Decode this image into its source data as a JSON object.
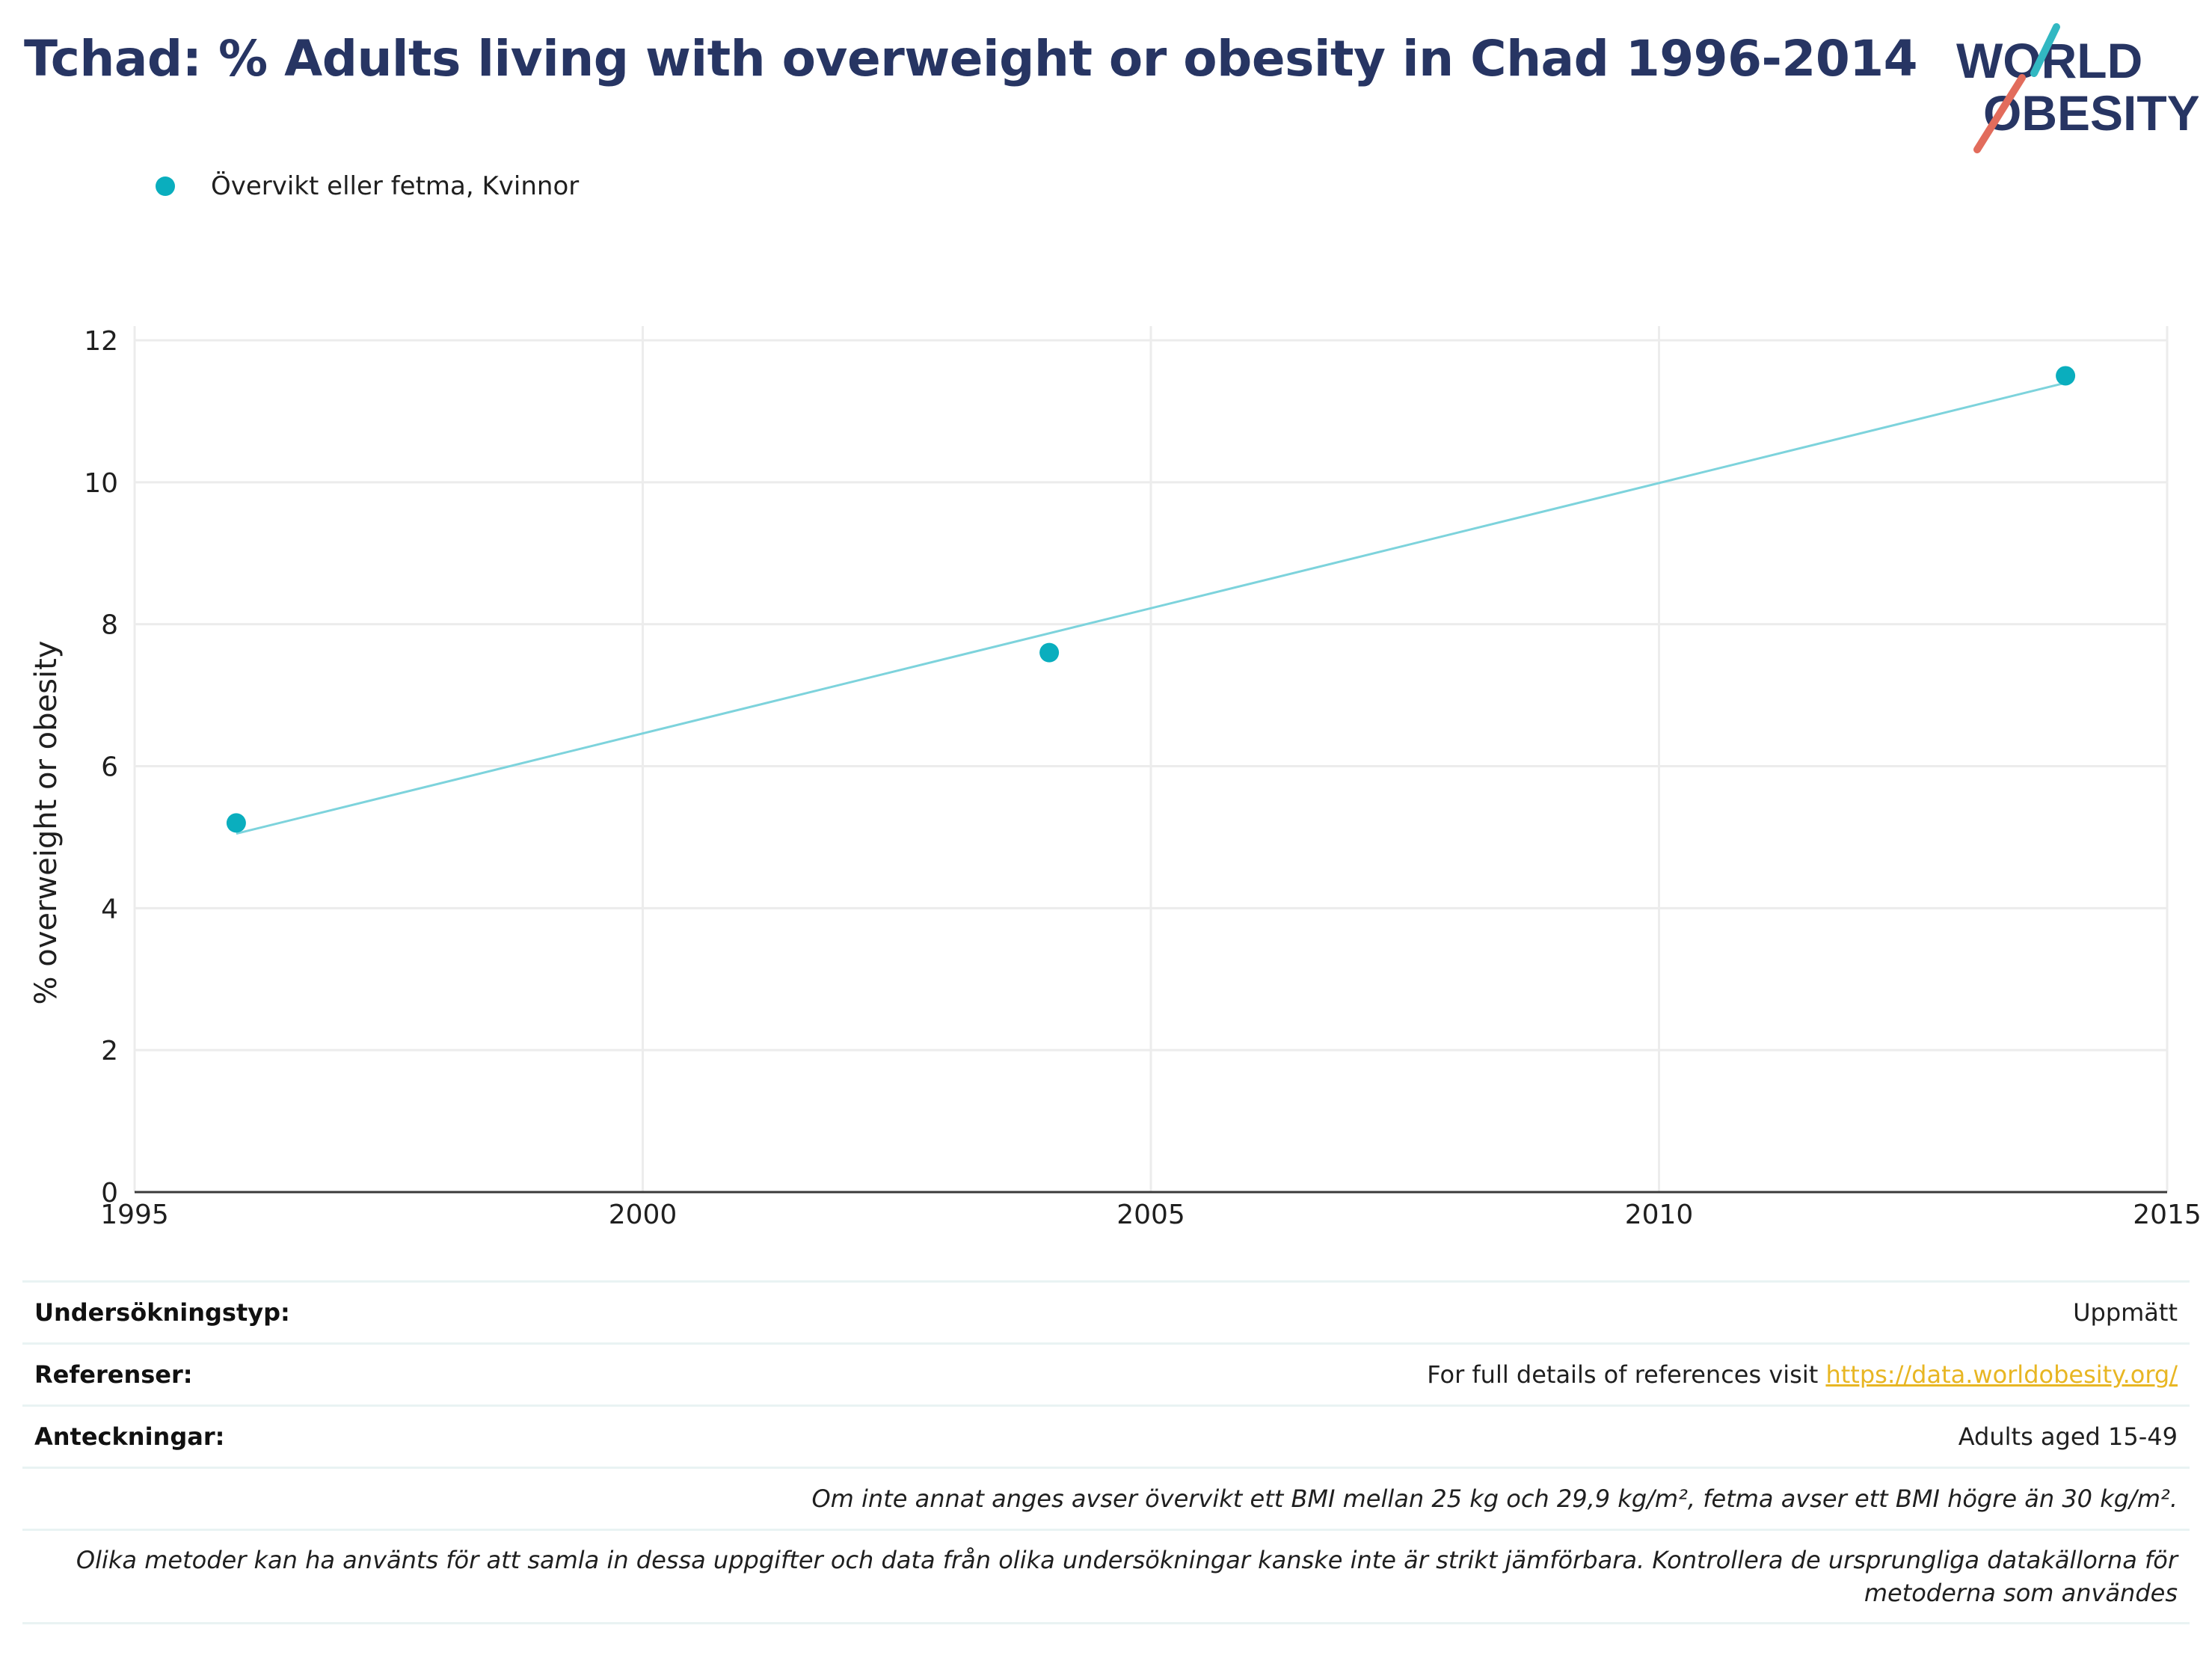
{
  "header": {
    "title": "Tchad: % Adults living with overweight or obesity in Chad 1996-2014",
    "logo_line1": "WORLD",
    "logo_line2": "OBESITY"
  },
  "legend": {
    "label": "Övervikt eller fetma, Kvinnor"
  },
  "colors": {
    "series": "#0aaebe",
    "trend": "#7dd3dc",
    "title": "#273563",
    "link": "#e8b623",
    "logo_teal": "#32b8c2",
    "logo_coral": "#e26c5c"
  },
  "chart_data": {
    "type": "scatter",
    "title": "Tchad: % Adults living with overweight or obesity in Chad 1996-2014",
    "xlabel": "",
    "ylabel": "% overweight or obesity",
    "xlim": [
      1995,
      2015
    ],
    "ylim": [
      0,
      12.2
    ],
    "xticks": [
      1995,
      2000,
      2005,
      2010,
      2015
    ],
    "yticks": [
      0,
      2,
      4,
      6,
      8,
      10,
      12
    ],
    "grid": true,
    "legend_position": "top-left",
    "series": [
      {
        "name": "Övervikt eller fetma, Kvinnor",
        "x": [
          1996,
          2004,
          2014
        ],
        "y": [
          5.2,
          7.6,
          11.5
        ]
      }
    ],
    "trendline": {
      "x": [
        1996,
        2014
      ],
      "y": [
        5.05,
        11.4
      ]
    }
  },
  "info": {
    "survey_type_label": "Undersökningstyp:",
    "survey_type_value": "Uppmätt",
    "references_label": "Referenser:",
    "references_prefix": "For full details of references visit ",
    "references_link": "https://data.worldobesity.org/",
    "notes_label": "Anteckningar:",
    "notes_value": "Adults aged 15-49",
    "note_bmi": "Om inte annat anges avser övervikt ett BMI mellan 25 kg och 29,9 kg/m², fetma avser ett BMI högre än 30 kg/m².",
    "note_methods_1": "Olika metoder kan ha använts för att samla in dessa uppgifter och data från olika undersökningar kanske inte är strikt jämförbara. Kontrollera de ursprungliga datakällorna för",
    "note_methods_2": "metoderna som användes"
  }
}
